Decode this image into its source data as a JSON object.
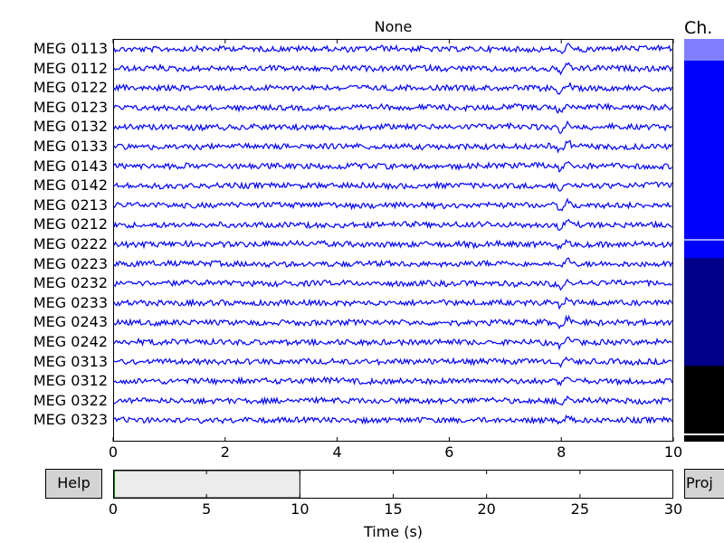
{
  "plot": {
    "title": "None",
    "xticks": [
      "0",
      "2",
      "4",
      "6",
      "8",
      "10"
    ],
    "xrange": [
      0,
      10
    ],
    "trace_color": "#0000ff"
  },
  "channels": [
    "MEG 0113",
    "MEG 0112",
    "MEG 0122",
    "MEG 0123",
    "MEG 0132",
    "MEG 0133",
    "MEG 0143",
    "MEG 0142",
    "MEG 0213",
    "MEG 0212",
    "MEG 0222",
    "MEG 0223",
    "MEG 0232",
    "MEG 0233",
    "MEG 0243",
    "MEG 0242",
    "MEG 0313",
    "MEG 0312",
    "MEG 0322",
    "MEG 0323"
  ],
  "buttons": {
    "help_label": "Help",
    "proj_label": "Proj"
  },
  "time_nav": {
    "xticks": [
      "0",
      "5",
      "10",
      "15",
      "20",
      "25",
      "30"
    ],
    "xrange": [
      0,
      30
    ],
    "window_start": 0,
    "window_end": 10,
    "xlabel": "Time (s)"
  },
  "channel_scroll": {
    "title": "Ch.",
    "colors": [
      "#8080ff",
      "#0000ff",
      "#00008b",
      "#000000"
    ]
  }
}
